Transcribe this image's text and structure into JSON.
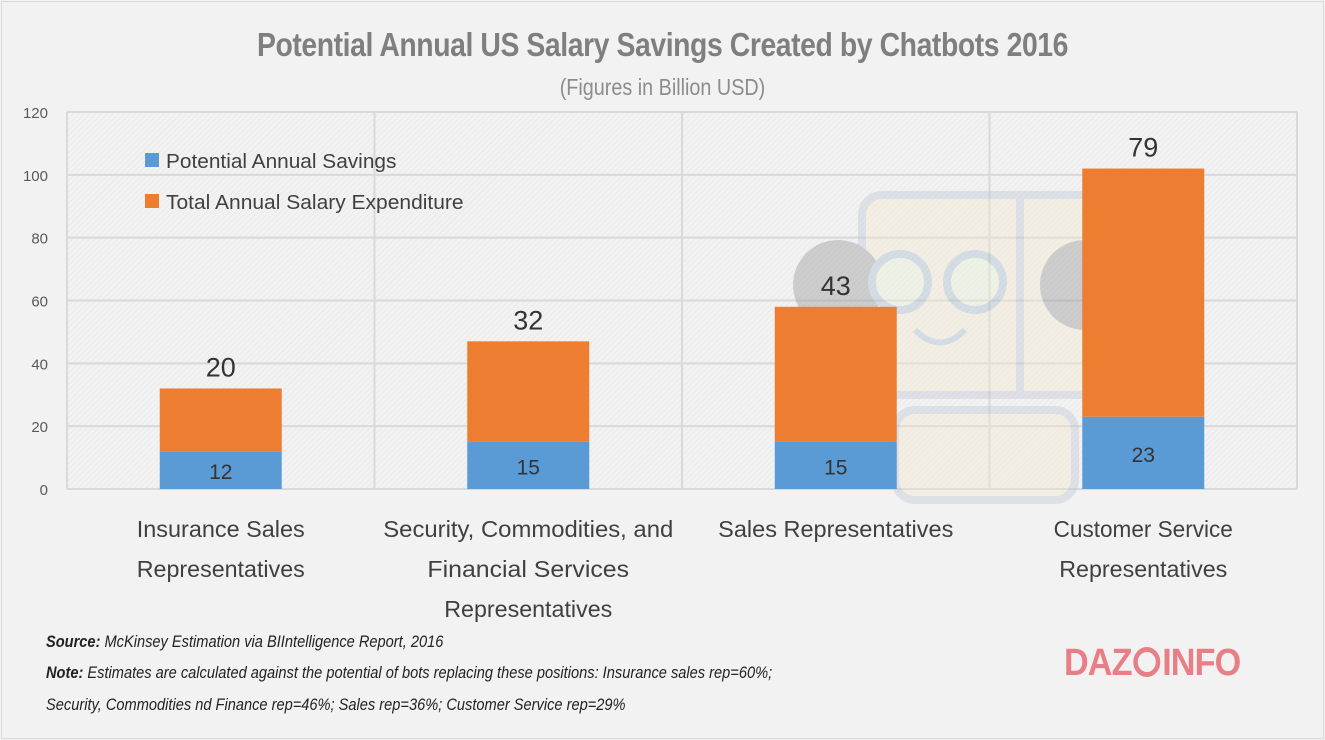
{
  "chart_data": {
    "type": "bar",
    "stacked": true,
    "title": "Potential Annual US Salary Savings Created by Chatbots 2016",
    "subtitle": "(Figures in Billion USD)",
    "categories": [
      [
        "Insurance Sales",
        "Representatives"
      ],
      [
        "Security, Commodities, and",
        "Financial Services",
        "Representatives"
      ],
      [
        "Sales Representatives"
      ],
      [
        "Customer Service",
        "Representatives"
      ]
    ],
    "series": [
      {
        "name": "Potential Annual Savings",
        "color": "#5b9bd5",
        "values": [
          12,
          15,
          15,
          23
        ]
      },
      {
        "name": "Total Annual Salary Expenditure",
        "color": "#ed7d31",
        "values": [
          20,
          32,
          43,
          79
        ]
      }
    ],
    "ylim": [
      0,
      120
    ],
    "yticks": [
      0,
      20,
      40,
      60,
      80,
      100,
      120
    ],
    "grid": true,
    "legend": "top-left"
  },
  "footer": {
    "source_label": "Source:",
    "source_text": " McKinsey Estimation via BIIntelligence Report, 2016",
    "note_label": "Note:",
    "note_line1": " Estimates are calculated against the potential of bots replacing these positions: Insurance sales rep=60%;",
    "note_line2": "Security, Commodities nd Finance rep=46%; Sales rep=36%; Customer Service rep=29%"
  },
  "logo": "DAZEINFO"
}
